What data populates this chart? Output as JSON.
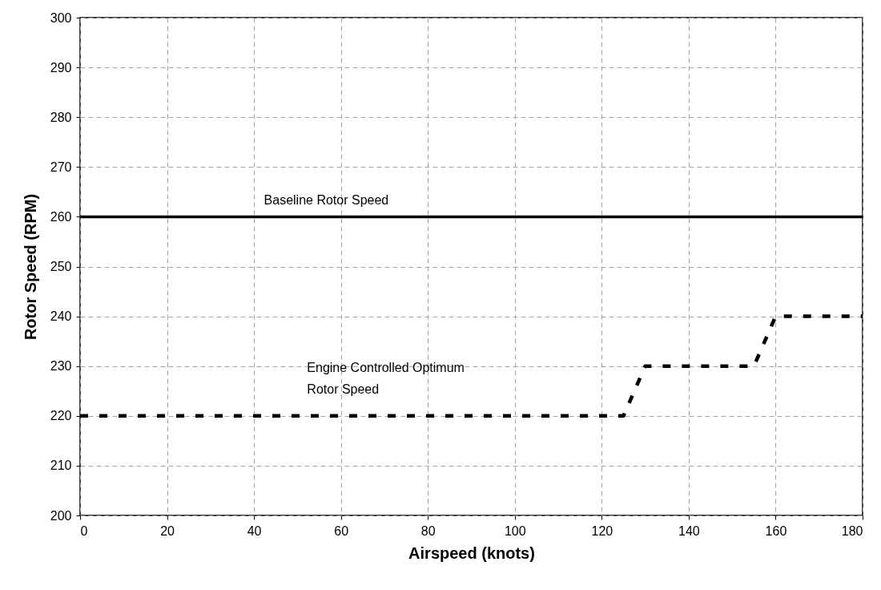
{
  "chart_data": {
    "type": "line",
    "xlabel": "Airspeed (knots)",
    "ylabel": "Rotor Speed (RPM)",
    "xlim": [
      0,
      180
    ],
    "ylim": [
      200,
      300
    ],
    "xticks": [
      0,
      20,
      40,
      60,
      80,
      100,
      120,
      140,
      160,
      180
    ],
    "yticks": [
      200,
      210,
      220,
      230,
      240,
      250,
      260,
      270,
      280,
      290,
      300
    ],
    "grid": true,
    "marker": "none",
    "series": [
      {
        "name": "Baseline Rotor Speed",
        "color": "#000000",
        "line_style": "solid",
        "x": [
          0,
          180
        ],
        "values": [
          260,
          260
        ]
      },
      {
        "name": "Engine Controlled Optimum Rotor Speed",
        "color": "#000000",
        "line_style": "dashed",
        "x": [
          0,
          125,
          130,
          155,
          160,
          180
        ],
        "values": [
          220,
          220,
          230,
          230,
          240,
          240
        ]
      }
    ]
  }
}
